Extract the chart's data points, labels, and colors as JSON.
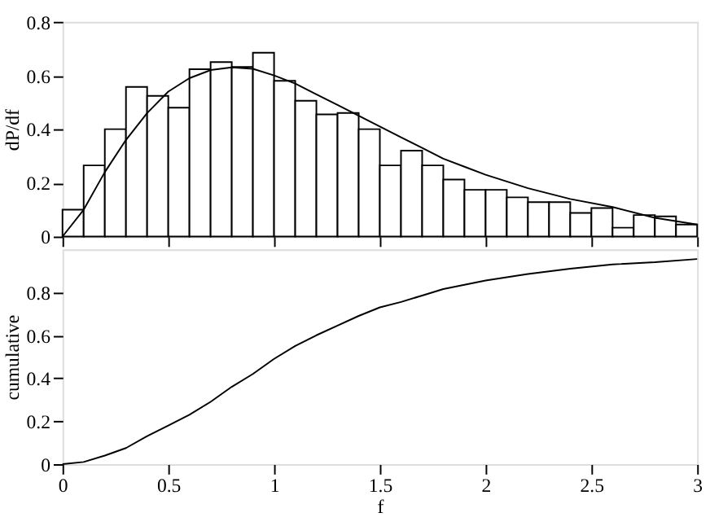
{
  "chart_data": [
    {
      "type": "histogram",
      "ylabel": "dP/df",
      "bins": [
        0,
        0.1,
        0.2,
        0.3,
        0.4,
        0.5,
        0.6,
        0.7,
        0.8,
        0.9,
        1.0,
        1.1,
        1.2,
        1.3,
        1.4,
        1.5,
        1.6,
        1.7,
        1.8,
        1.9,
        2.0,
        2.1,
        2.2,
        2.3,
        2.4,
        2.5,
        2.6,
        2.7,
        2.8,
        2.9,
        3.0
      ],
      "values": [
        0.1,
        0.265,
        0.4,
        0.557,
        0.524,
        0.48,
        0.623,
        0.65,
        0.632,
        0.685,
        0.58,
        0.506,
        0.455,
        0.46,
        0.4,
        0.265,
        0.32,
        0.265,
        0.212,
        0.174,
        0.174,
        0.146,
        0.128,
        0.128,
        0.088,
        0.106,
        0.033,
        0.08,
        0.075,
        0.045
      ],
      "color": "#ffffff",
      "series": [
        {
          "type": "line",
          "color": "#000000",
          "x": [
            0,
            0.1,
            0.2,
            0.3,
            0.4,
            0.5,
            0.6,
            0.7,
            0.8,
            0.9,
            1.0,
            1.1,
            1.2,
            1.3,
            1.4,
            1.5,
            1.6,
            1.7,
            1.8,
            1.9,
            2.0,
            2.2,
            2.4,
            2.6,
            2.8,
            3.0
          ],
          "values": [
            0,
            0.1,
            0.24,
            0.36,
            0.46,
            0.54,
            0.59,
            0.62,
            0.63,
            0.625,
            0.6,
            0.57,
            0.53,
            0.49,
            0.45,
            0.41,
            0.37,
            0.33,
            0.29,
            0.26,
            0.23,
            0.18,
            0.14,
            0.11,
            0.07,
            0.045
          ]
        }
      ],
      "xlim": [
        0,
        3
      ],
      "xticks": [
        0,
        0.5,
        1,
        1.5,
        2,
        2.5,
        3
      ],
      "ylim": [
        0,
        0.8
      ],
      "yticks": [
        0,
        0.2,
        0.4,
        0.6,
        0.8
      ],
      "tick_labels": "y",
      "grid": false
    },
    {
      "type": "line",
      "xlabel": "f",
      "ylabel": "cumulative",
      "x": [
        0,
        0.1,
        0.2,
        0.3,
        0.4,
        0.5,
        0.6,
        0.7,
        0.8,
        0.9,
        1.0,
        1.1,
        1.2,
        1.3,
        1.4,
        1.5,
        1.6,
        1.7,
        1.8,
        1.9,
        2.0,
        2.2,
        2.4,
        2.6,
        2.8,
        3.0
      ],
      "series": [
        {
          "color": "#000000",
          "values": [
            0,
            0.01,
            0.04,
            0.075,
            0.13,
            0.18,
            0.23,
            0.29,
            0.36,
            0.42,
            0.49,
            0.55,
            0.6,
            0.645,
            0.69,
            0.73,
            0.755,
            0.785,
            0.815,
            0.835,
            0.855,
            0.885,
            0.91,
            0.93,
            0.94,
            0.955
          ]
        }
      ],
      "xlim": [
        0,
        3
      ],
      "xticks": [
        0,
        0.5,
        1,
        1.5,
        2,
        2.5,
        3
      ],
      "ylim": [
        0,
        1
      ],
      "yticks": [
        0,
        0.2,
        0.4,
        0.6,
        0.8
      ],
      "grid": false,
      "marker": "none",
      "line_style": "solid"
    }
  ]
}
